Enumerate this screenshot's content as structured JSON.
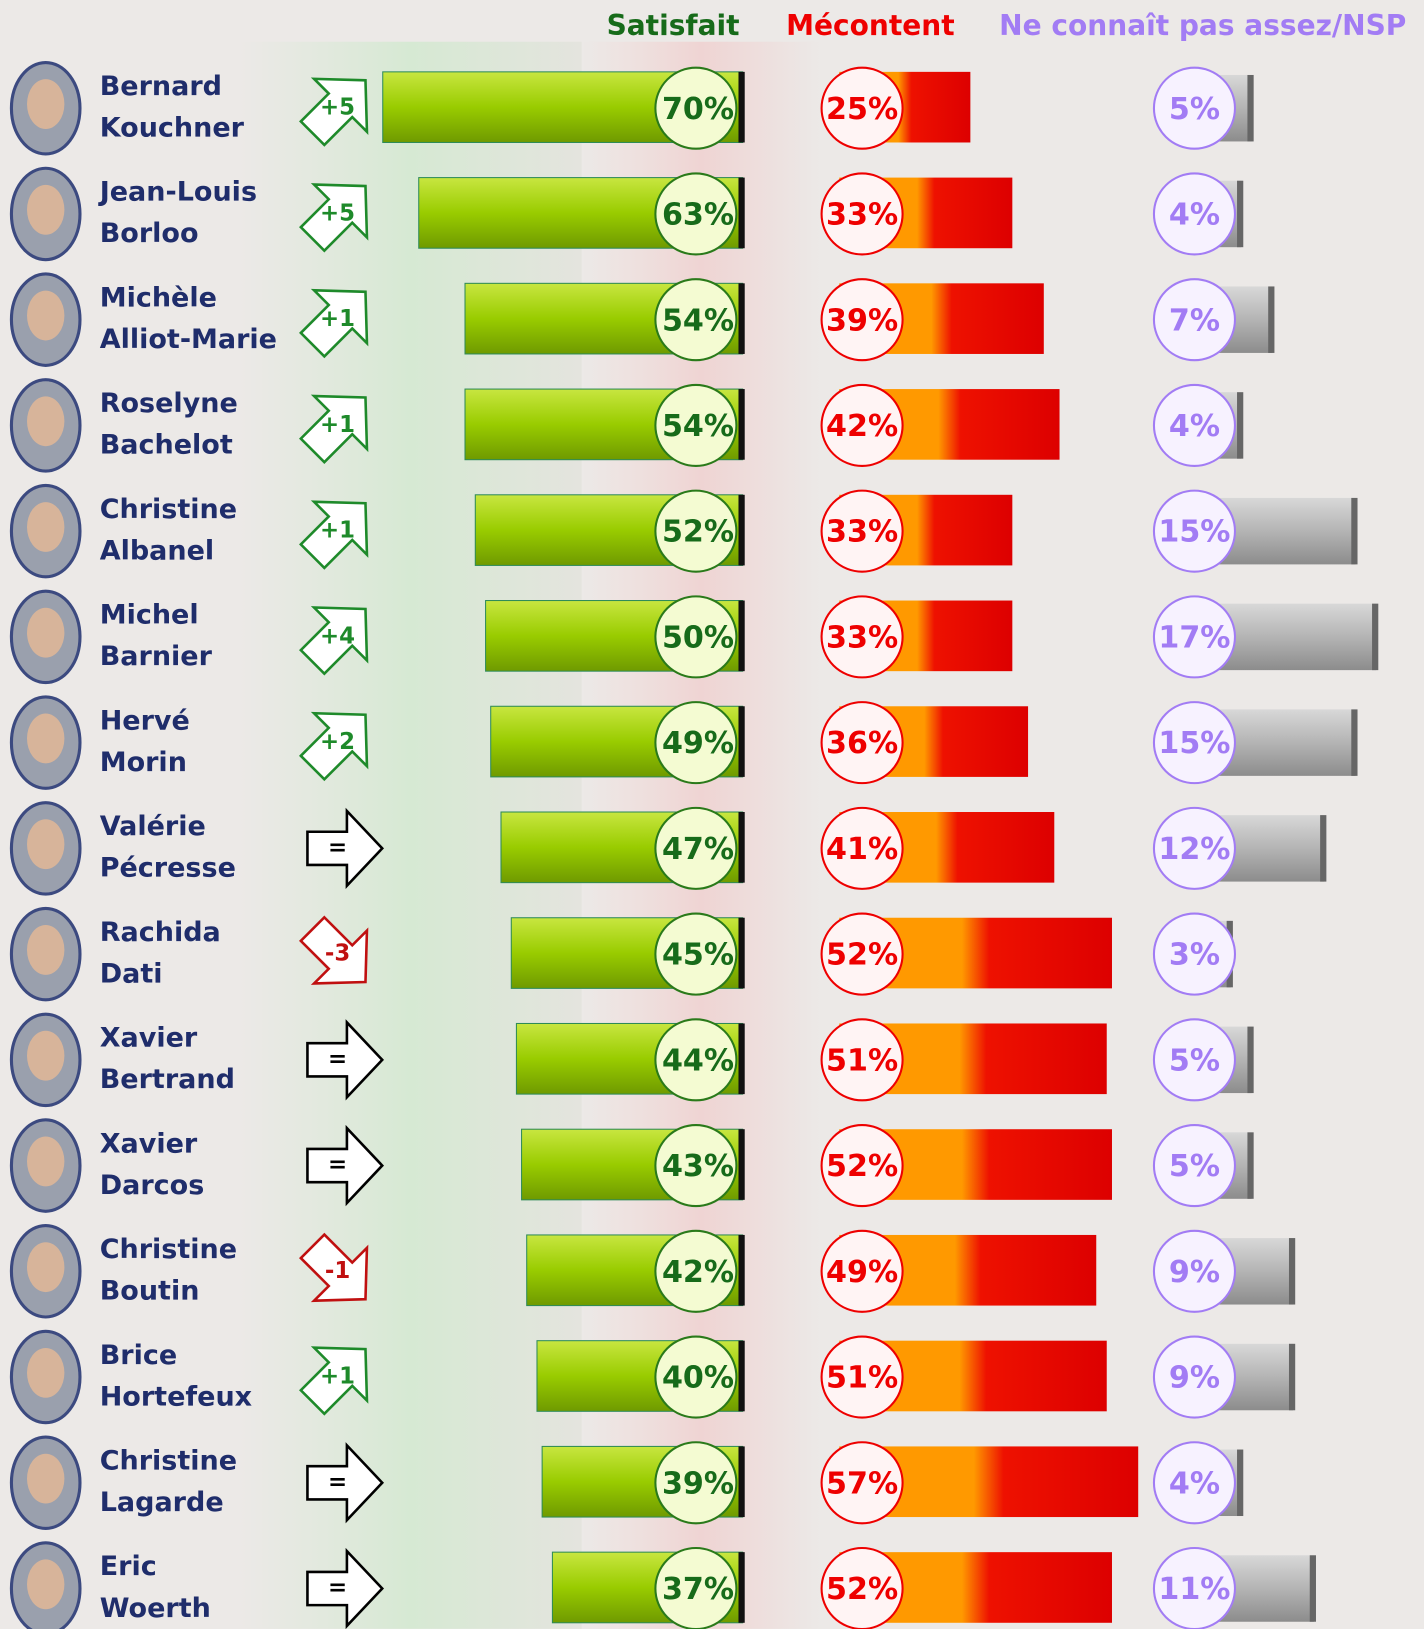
{
  "chart_data": {
    "type": "bar",
    "categories": [
      [
        "Bernard",
        "Kouchner"
      ],
      [
        "Jean-Louis",
        "Borloo"
      ],
      [
        "Michèle",
        "Alliot-Marie"
      ],
      [
        "Roselyne",
        "Bachelot"
      ],
      [
        "Christine",
        "Albanel"
      ],
      [
        "Michel",
        "Barnier"
      ],
      [
        "Hervé",
        "Morin"
      ],
      [
        "Valérie",
        "Pécresse"
      ],
      [
        "Rachida",
        "Dati"
      ],
      [
        "Xavier",
        "Bertrand"
      ],
      [
        "Xavier",
        "Darcos"
      ],
      [
        "Christine",
        "Boutin"
      ],
      [
        "Brice",
        "Hortefeux"
      ],
      [
        "Christine",
        "Lagarde"
      ],
      [
        "Eric",
        "Woerth"
      ]
    ],
    "changes": [
      "+5",
      "+5",
      "+1",
      "+1",
      "+1",
      "+4",
      "+2",
      "=",
      "-3",
      "=",
      "=",
      "-1",
      "+1",
      "=",
      "="
    ],
    "series": [
      {
        "name": "Satisfait",
        "color": "#99cc00",
        "label_color": "#176b1a",
        "values": [
          70,
          63,
          54,
          54,
          52,
          50,
          49,
          47,
          45,
          44,
          43,
          42,
          40,
          39,
          37
        ],
        "value_labels": [
          "70%",
          "63%",
          "54%",
          "54%",
          "52%",
          "50%",
          "49%",
          "47%",
          "45%",
          "44%",
          "43%",
          "42%",
          "40%",
          "39%",
          "37%"
        ]
      },
      {
        "name": "Mécontent",
        "color": "#ee1100",
        "label_color": "#ee0000",
        "values": [
          25,
          33,
          39,
          42,
          33,
          33,
          36,
          41,
          52,
          51,
          52,
          49,
          51,
          57,
          52
        ],
        "value_labels": [
          "25%",
          "33%",
          "39%",
          "42%",
          "33%",
          "33%",
          "36%",
          "41%",
          "52%",
          "51%",
          "52%",
          "49%",
          "51%",
          "57%",
          "52%"
        ]
      },
      {
        "name": "Ne connaît pas assez/NSP",
        "color": "#b4b4b4",
        "label_color": "#a27cf4",
        "values": [
          5,
          4,
          7,
          4,
          15,
          17,
          15,
          12,
          3,
          5,
          5,
          9,
          9,
          4,
          11
        ],
        "value_labels": [
          "5%",
          "4%",
          "7%",
          "4%",
          "15%",
          "17%",
          "15%",
          "12%",
          "3%",
          "5%",
          "5%",
          "9%",
          "9%",
          "4%",
          "11%"
        ]
      }
    ]
  }
}
